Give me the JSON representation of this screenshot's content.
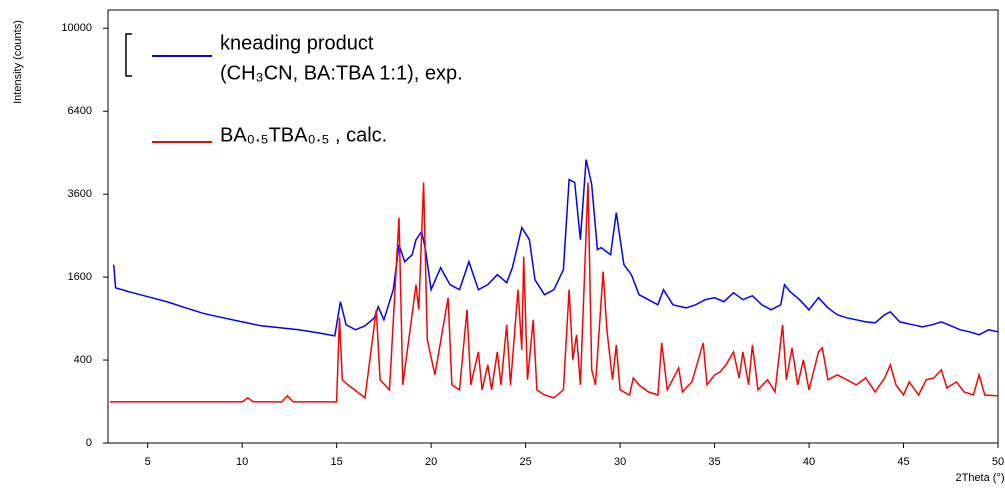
{
  "chart_data": {
    "type": "line",
    "x_label": "2Theta (°)",
    "y_label": "Intensity (counts)",
    "y_scale": "sqrt",
    "xlim": [
      2.9,
      50
    ],
    "ylim": [
      0,
      10900
    ],
    "xticks": [
      5,
      10,
      15,
      20,
      25,
      30,
      35,
      40,
      45,
      50
    ],
    "yticks": [
      0,
      400,
      1600,
      3600,
      6400,
      10000
    ],
    "series": [
      {
        "name": [
          "kneading product",
          "(CH₃CN, BA:TBA 1:1), exp."
        ],
        "color": "#0000ff",
        "x": [
          3.2,
          3.3,
          4,
          5,
          6,
          7,
          8,
          9,
          10,
          11,
          12,
          13,
          14,
          14.9,
          15.2,
          15.5,
          16,
          16.5,
          17,
          17.2,
          17.5,
          18,
          18.3,
          18.6,
          19,
          19.2,
          19.5,
          19.7,
          20,
          20.5,
          21,
          21.5,
          22,
          22.5,
          23,
          23.5,
          24,
          24.3,
          24.8,
          25.2,
          25.5,
          26,
          26.5,
          27,
          27.3,
          27.6,
          27.9,
          28.2,
          28.5,
          28.8,
          29,
          29.5,
          29.8,
          30.2,
          30.6,
          31,
          31.5,
          32,
          32.3,
          32.8,
          33.5,
          34,
          34.5,
          35,
          35.5,
          36,
          36.5,
          37,
          37.5,
          38,
          38.5,
          38.7,
          39,
          39.5,
          40,
          40.5,
          41,
          41.5,
          42,
          42.5,
          43,
          43.5,
          44,
          44.3,
          44.8,
          45.5,
          46,
          46.5,
          47,
          47.5,
          48,
          48.5,
          49,
          49.5,
          50
        ],
        "values": [
          1849,
          1400,
          1330,
          1244,
          1163,
          1063,
          972,
          912,
          853,
          799,
          772,
          745,
          706,
          667,
          1160,
          812,
          745,
          799,
          912,
          1079,
          882,
          1366,
          2287,
          1911,
          2062,
          2404,
          2597,
          2173,
          1366,
          1787,
          1457,
          1366,
          1911,
          1366,
          1457,
          1647,
          1494,
          1787,
          2697,
          2404,
          1549,
          1278,
          1366,
          1747,
          4035,
          3944,
          2404,
          4673,
          3884,
          2173,
          2219,
          2062,
          3086,
          1849,
          1647,
          1278,
          1193,
          1111,
          1366,
          1111,
          1063,
          1111,
          1193,
          1227,
          1160,
          1313,
          1193,
          1261,
          1111,
          1032,
          1111,
          1457,
          1330,
          1193,
          1032,
          1227,
          1063,
          956,
          912,
          882,
          853,
          840,
          956,
          1001,
          853,
          812,
          785,
          812,
          853,
          799,
          745,
          719,
          680,
          745,
          719
        ]
      },
      {
        "name": [
          "BA₀.₅TBA₀.₅ , calc."
        ],
        "color": "#ff0000",
        "x": [
          3,
          10,
          10.3,
          10.6,
          12.1,
          12.4,
          12.7,
          15,
          15.15,
          15.3,
          15.6,
          16.5,
          17.1,
          17.3,
          17.8,
          18.3,
          18.5,
          19.2,
          19.35,
          19.6,
          19.8,
          20.2,
          20.9,
          21.1,
          21.5,
          21.9,
          22.1,
          22.5,
          22.7,
          23,
          23.2,
          23.5,
          23.7,
          24,
          24.2,
          24.6,
          24.8,
          24.9,
          25.1,
          25.4,
          25.6,
          26,
          26.5,
          27,
          27.3,
          27.5,
          27.7,
          27.9,
          28.3,
          28.5,
          28.7,
          29.1,
          29.3,
          29.6,
          29.8,
          30,
          30.5,
          30.7,
          31,
          31.5,
          32,
          32.2,
          32.5,
          33.1,
          33.3,
          33.8,
          34.4,
          34.6,
          35,
          35.3,
          35.6,
          36,
          36.3,
          36.5,
          36.8,
          37,
          37.3,
          37.8,
          38.2,
          38.6,
          38.8,
          39.1,
          39.4,
          39.7,
          40,
          40.5,
          40.7,
          41,
          41.5,
          42,
          42.5,
          43,
          43.5,
          44,
          44.3,
          44.6,
          45,
          45.3,
          45.8,
          46.2,
          46.6,
          47,
          47.3,
          47.8,
          48.2,
          48.7,
          49,
          49.3,
          50
        ],
        "values": [
          98,
          98,
          118,
          98,
          98,
          129,
          98,
          98,
          912,
          232,
          196,
          118,
          1032,
          232,
          164,
          2954,
          196,
          1457,
          1032,
          3944,
          619,
          270,
          1227,
          196,
          164,
          1032,
          196,
          483,
          164,
          355,
          164,
          483,
          196,
          812,
          196,
          1366,
          505,
          2018,
          232,
          882,
          164,
          134,
          118,
          164,
          1366,
          402,
          680,
          196,
          3944,
          311,
          196,
          1706,
          745,
          232,
          560,
          164,
          134,
          246,
          196,
          152,
          134,
          583,
          164,
          328,
          152,
          217,
          583,
          196,
          270,
          294,
          355,
          483,
          246,
          483,
          196,
          560,
          164,
          232,
          152,
          812,
          232,
          526,
          196,
          402,
          164,
          483,
          526,
          232,
          270,
          232,
          196,
          246,
          152,
          246,
          355,
          196,
          134,
          217,
          134,
          232,
          246,
          311,
          176,
          217,
          152,
          134,
          270,
          134,
          129
        ]
      }
    ]
  }
}
